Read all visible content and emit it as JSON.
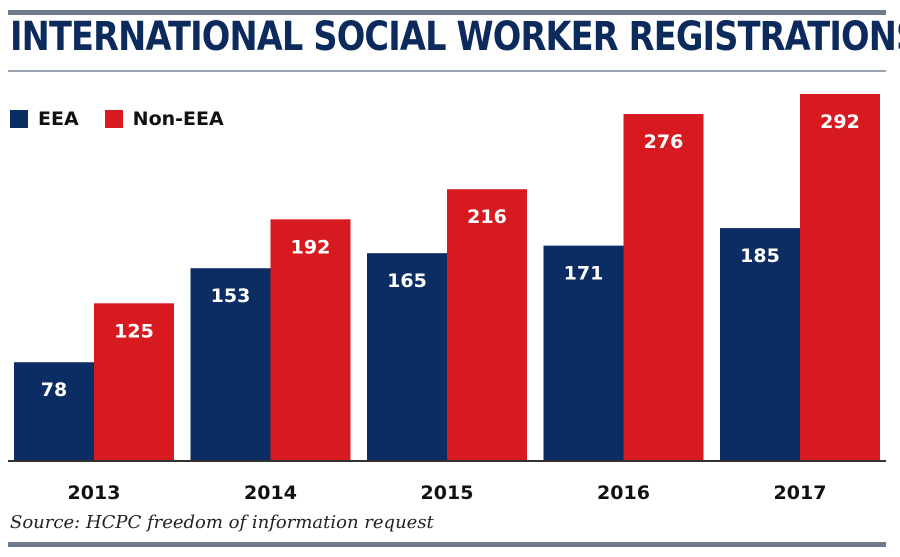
{
  "title": "INTERNATIONAL SOCIAL WORKER REGISTRATIONS",
  "source": "Source: HCPC freedom of information request",
  "colors": {
    "eea": "#0c2d63",
    "non_eea": "#d71920",
    "axis": "#333333",
    "rule": "#6e7b8b"
  },
  "chart_data": {
    "type": "bar",
    "categories": [
      "2013",
      "2014",
      "2015",
      "2016",
      "2017"
    ],
    "series": [
      {
        "name": "EEA",
        "values": [
          78,
          153,
          165,
          171,
          185
        ]
      },
      {
        "name": "Non-EEA",
        "values": [
          125,
          192,
          216,
          276,
          292
        ]
      }
    ],
    "title": "INTERNATIONAL SOCIAL WORKER REGISTRATIONS",
    "xlabel": "",
    "ylabel": "",
    "ylim": [
      0,
      300
    ],
    "grid": false,
    "legend": "top-left",
    "data_labels": true
  }
}
